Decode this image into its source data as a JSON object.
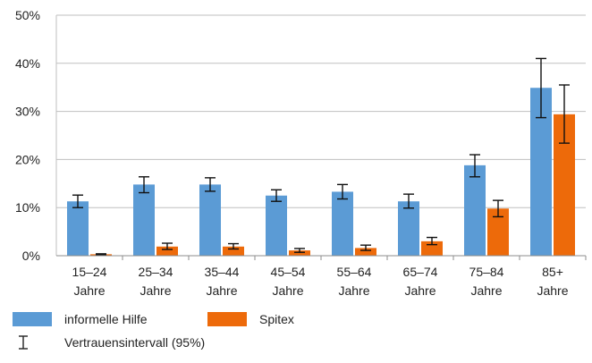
{
  "chart_data": {
    "type": "bar",
    "title": "",
    "xlabel": "",
    "ylabel": "",
    "ylim": [
      0,
      50
    ],
    "y_ticks": [
      "0%",
      "10%",
      "20%",
      "30%",
      "40%",
      "50%"
    ],
    "grid": true,
    "categories": [
      [
        "15–24",
        "Jahre"
      ],
      [
        "25–34",
        "Jahre"
      ],
      [
        "35–44",
        "Jahre"
      ],
      [
        "45–54",
        "Jahre"
      ],
      [
        "55–64",
        "Jahre"
      ],
      [
        "65–74",
        "Jahre"
      ],
      [
        "75–84",
        "Jahre"
      ],
      [
        "85+",
        "Jahre"
      ]
    ],
    "series": [
      {
        "name": "informelle Hilfe",
        "color": "#5b9bd5",
        "values": [
          11.3,
          14.8,
          14.8,
          12.5,
          13.3,
          11.3,
          18.8,
          34.9
        ],
        "ci_low": [
          10.0,
          13.1,
          13.4,
          11.3,
          11.8,
          9.9,
          16.4,
          28.7
        ],
        "ci_high": [
          12.6,
          16.4,
          16.2,
          13.7,
          14.8,
          12.8,
          21.0,
          41.0
        ]
      },
      {
        "name": "Spitex",
        "color": "#ed6a0a",
        "values": [
          0.3,
          1.9,
          1.9,
          1.1,
          1.6,
          3.0,
          9.8,
          29.4
        ],
        "ci_low": [
          0.2,
          1.3,
          1.4,
          0.7,
          1.1,
          2.3,
          8.1,
          23.4
        ],
        "ci_high": [
          0.4,
          2.6,
          2.5,
          1.5,
          2.2,
          3.8,
          11.5,
          35.5
        ]
      }
    ],
    "legend_position": "bottom-left",
    "ci_label": "Vertrauensintervall (95%)"
  }
}
